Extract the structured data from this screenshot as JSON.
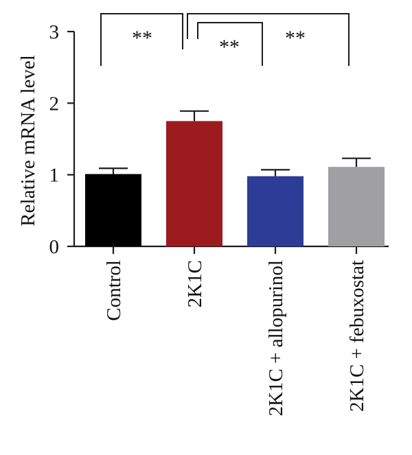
{
  "chart_data": {
    "type": "bar",
    "ylabel": "Relative mRNA level",
    "ylim": [
      0,
      3
    ],
    "yticks": [
      "0",
      "1",
      "2",
      "3"
    ],
    "categories": [
      "Control",
      "2K1C",
      "2K1C + allopurinol",
      "2K1C + febuxostat"
    ],
    "values": [
      1.01,
      1.75,
      0.98,
      1.11
    ],
    "errors": [
      0.08,
      0.14,
      0.09,
      0.12
    ],
    "colors": [
      "#000000",
      "#9b1b1f",
      "#2d3c96",
      "#a0a0a2"
    ],
    "comparisons": [
      {
        "from": 0,
        "to": 1,
        "label": "**"
      },
      {
        "from": 1,
        "to": 2,
        "label": "**"
      },
      {
        "from": 1,
        "to": 3,
        "label": "**"
      }
    ]
  }
}
